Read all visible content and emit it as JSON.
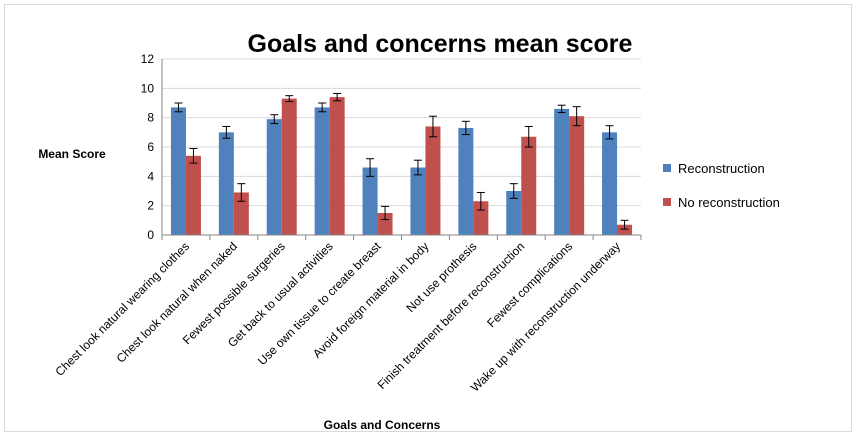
{
  "chart_data": {
    "type": "bar",
    "title": "Goals and concerns mean score",
    "xlabel": "Goals and Concerns",
    "ylabel": "Mean Score",
    "ylim": [
      0,
      12
    ],
    "yticks": [
      "0",
      "2",
      "4",
      "6",
      "8",
      "10",
      "12"
    ],
    "grid": true,
    "legend_position": "right",
    "categories": [
      "Chest look natural wearing clothes",
      "Chest look natural when naked",
      "Fewest possible surgeries",
      "Get back to usual activities",
      "Use own tissue to create breast",
      "Avoid foreign material in body",
      "Not use prothesis",
      "Finish treatment before reconstruction",
      "Fewest complications",
      "Wake up with reconstruction underway"
    ],
    "series": [
      {
        "name": "Reconstruction",
        "color": "#4F81BD",
        "values": [
          8.7,
          7.0,
          7.9,
          8.7,
          4.6,
          4.6,
          7.3,
          3.0,
          8.6,
          7.0
        ],
        "error": [
          0.3,
          0.4,
          0.3,
          0.3,
          0.6,
          0.5,
          0.45,
          0.5,
          0.25,
          0.45
        ]
      },
      {
        "name": "No reconstruction",
        "color": "#C0504D",
        "values": [
          5.4,
          2.9,
          9.3,
          9.4,
          1.5,
          7.4,
          2.3,
          6.7,
          8.1,
          0.7
        ],
        "error": [
          0.5,
          0.6,
          0.2,
          0.25,
          0.45,
          0.7,
          0.6,
          0.7,
          0.65,
          0.3
        ]
      }
    ]
  }
}
